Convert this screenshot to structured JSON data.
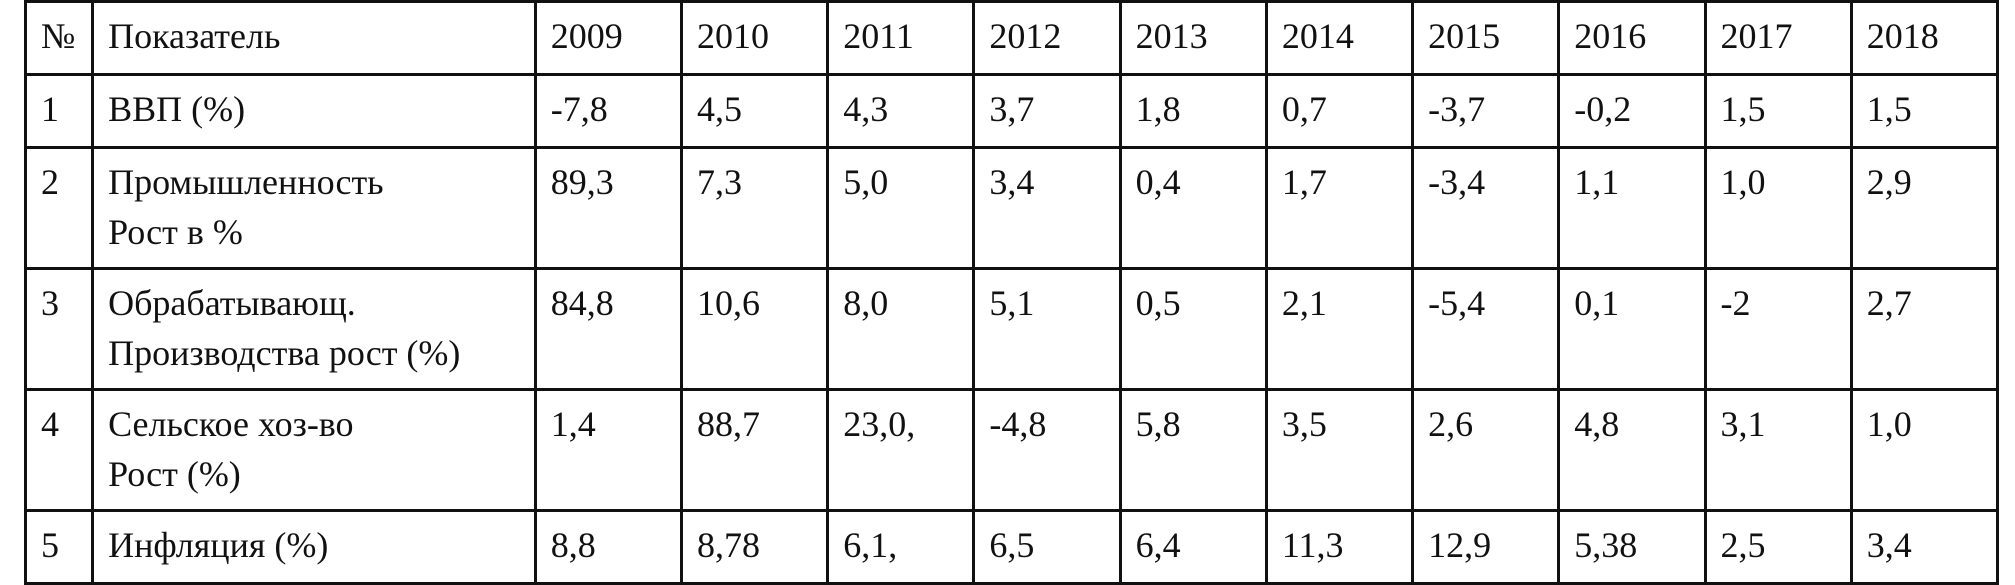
{
  "table": {
    "headers": {
      "num": "№",
      "indicator": "Показатель",
      "years": [
        "2009",
        "2010",
        "2011",
        "2012",
        "2013",
        "2014",
        "2015",
        "2016",
        "2017",
        "2018"
      ]
    },
    "rows": [
      {
        "num": "1",
        "label_lines": [
          "ВВП (%)"
        ],
        "values": [
          "-7,8",
          "4,5",
          "4,3",
          "3,7",
          "1,8",
          "0,7",
          "-3,7",
          "-0,2",
          "1,5",
          "1,5"
        ]
      },
      {
        "num": "2",
        "label_lines": [
          "Промышленность",
          "Рост в %"
        ],
        "values": [
          "89,3",
          "7,3",
          "5,0",
          "3,4",
          "0,4",
          "1,7",
          "-3,4",
          "1,1",
          "1,0",
          "2,9"
        ]
      },
      {
        "num": "3",
        "label_lines": [
          "Обрабатывающ.",
          "Производства рост (%)"
        ],
        "values": [
          "84,8",
          "10,6",
          "8,0",
          "5,1",
          "0,5",
          "2,1",
          "-5,4",
          "0,1",
          "-2",
          "2,7"
        ]
      },
      {
        "num": "4",
        "label_lines": [
          "Сельское хоз-во",
          "Рост (%)"
        ],
        "values": [
          "1,4",
          "88,7",
          "23,0,",
          "-4,8",
          "5,8",
          "3,5",
          "2,6",
          "4,8",
          "3,1",
          "1,0"
        ]
      },
      {
        "num": "5",
        "label_lines": [
          "Инфляция (%)"
        ],
        "values": [
          "8,8",
          "8,78",
          "6,1,",
          "6,5",
          "6,4",
          "11,3",
          "12,9",
          "5,38",
          "2,5",
          "3,4"
        ]
      }
    ]
  }
}
